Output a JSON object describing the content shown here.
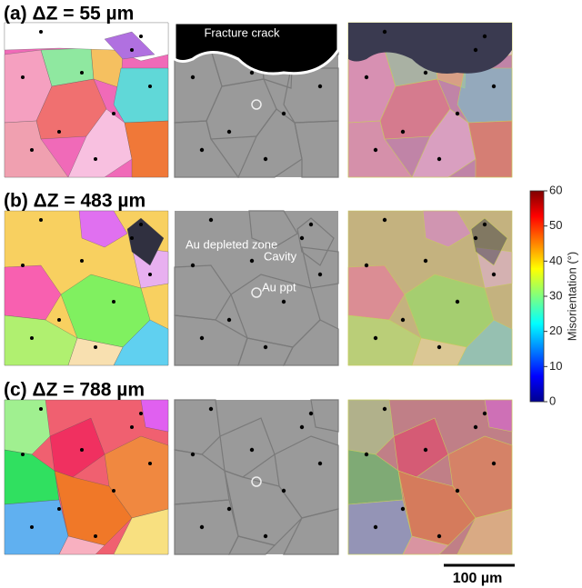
{
  "rows": [
    {
      "label": "(a) ΔZ = 55 µm"
    },
    {
      "label": "(b) ΔZ = 483 µm"
    },
    {
      "label": "(c) ΔZ = 788 µm"
    }
  ],
  "annotations": {
    "fracture": "Fracture crack",
    "depleted": "Au depleted zone",
    "cavity": "Cavity",
    "ppt": "Au ppt"
  },
  "colorbar": {
    "label": "Misorientation (°)",
    "lim": [
      0,
      60
    ],
    "ticks": [
      0,
      10,
      20,
      30,
      40,
      50,
      60
    ]
  },
  "scale_bar": "100 µm"
}
